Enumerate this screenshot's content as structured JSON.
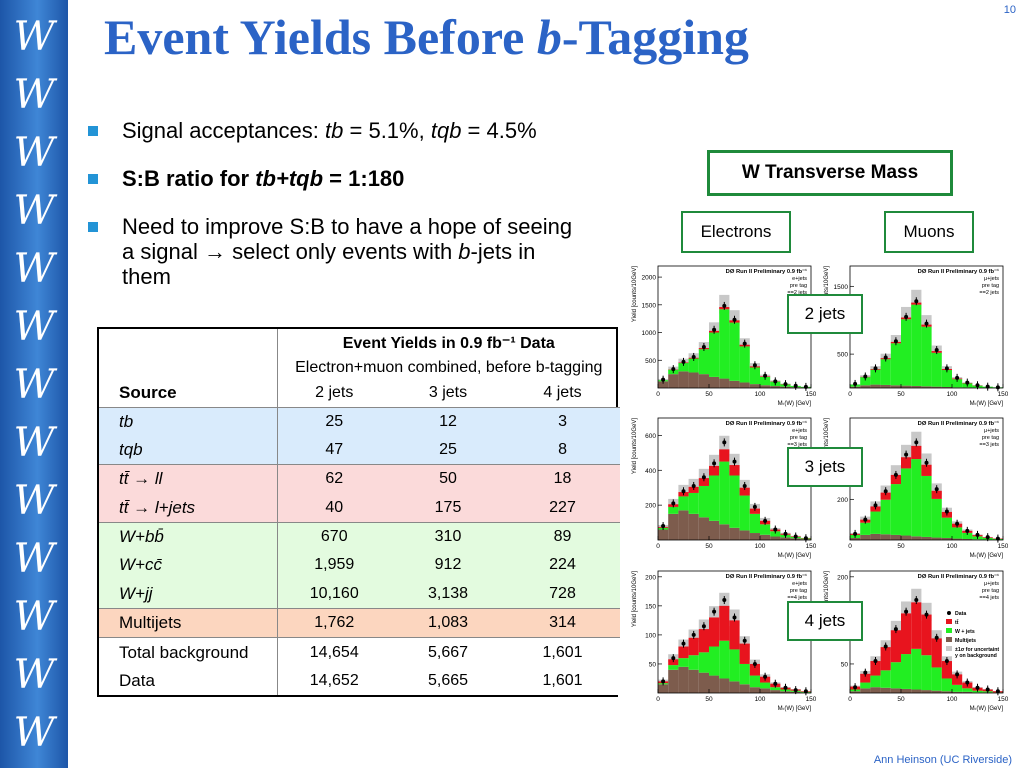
{
  "slide": {
    "page_number": "10",
    "title_main": "Event Yields Before ",
    "title_italic": "b",
    "title_tail": "-Tagging",
    "footer": "Ann Heinson   (UC Riverside)"
  },
  "sidebar": {
    "glyph": "W",
    "count": 13
  },
  "bullets": {
    "b1_prefix": "Signal acceptances: ",
    "b1_tb": "tb",
    "b1_tb_val": " = 5.1%, ",
    "b1_tqb": "tqb",
    "b1_tqb_val": " = 4.5%",
    "b2_prefix": "S:B ratio for ",
    "b2_italic": "tb+tqb",
    "b2_suffix": " = 1:180",
    "b3_line1": "Need to improve S:B to have a hope of seeing a signal ",
    "b3_arrow": "→",
    "b3_line2": " select only events with ",
    "b3_italic": "b",
    "b3_tail": "-jets in them"
  },
  "table": {
    "title": "Event Yields in 0.9 fb⁻¹ Data",
    "subtitle": "Electron+muon combined, before b-tagging",
    "source_header": "Source",
    "columns": [
      "2 jets",
      "3 jets",
      "4 jets"
    ],
    "rows": [
      {
        "source": "tb",
        "values": [
          "25",
          "12",
          "3"
        ]
      },
      {
        "source": "tqb",
        "values": [
          "47",
          "25",
          "8"
        ]
      },
      {
        "source": "tt̄ → ll",
        "values": [
          "62",
          "50",
          "18"
        ]
      },
      {
        "source": "tt̄ → l+jets",
        "values": [
          "40",
          "175",
          "227"
        ]
      },
      {
        "source": "W+bb̄",
        "values": [
          "670",
          "310",
          "89"
        ]
      },
      {
        "source": "W+cc̄",
        "values": [
          "1,959",
          "912",
          "224"
        ]
      },
      {
        "source": "W+jj",
        "values": [
          "10,160",
          "3,138",
          "728"
        ]
      },
      {
        "source": "Multijets",
        "values": [
          "1,762",
          "1,083",
          "314"
        ]
      },
      {
        "source": "Total background",
        "values": [
          "14,654",
          "5,667",
          "1,601"
        ]
      },
      {
        "source": "Data",
        "values": [
          "14,652",
          "5,665",
          "1,601"
        ]
      }
    ]
  },
  "labels": {
    "wtm": "W Transverse Mass",
    "electrons": "Electrons",
    "muons": "Muons",
    "jets2": "2 jets",
    "jets3": "3 jets",
    "jets4": "4 jets"
  },
  "plot_text": {
    "header": "DØ Run II Preliminary 0.9 fb⁻¹",
    "ylabel": "Yield [counts/10GeV]",
    "xlabel": "Mₜ(W) [GeV]",
    "e_chan": "e+jets",
    "mu_chan": "μ+jets",
    "pretag": "pre tag",
    "eq2": "==2 jets",
    "eq3": "==3 jets",
    "eq4": "==4 jets",
    "legend_data": "Data",
    "legend_tt": "tt̄",
    "legend_wjets": "W + jets",
    "legend_multijets": "Multijets",
    "legend_unc": "±1σ for uncertainty on background",
    "x_ticks": [
      "0",
      "50",
      "100",
      "150"
    ]
  },
  "chart_data": [
    {
      "type": "bar",
      "channel": "e+jets",
      "jets": "==2 jets",
      "xlabel": "Mₜ(W) [GeV]",
      "ylabel": "Yield [counts/10GeV]",
      "xlim": [
        0,
        150
      ],
      "ylim": [
        0,
        2200
      ],
      "y_ticks": [
        "500",
        "1000",
        "1500",
        "2000"
      ],
      "categories": [
        "5",
        "15",
        "25",
        "35",
        "45",
        "55",
        "65",
        "75",
        "85",
        "95",
        "105",
        "115",
        "125",
        "135",
        "145"
      ],
      "series": [
        {
          "name": "Multijets",
          "values": [
            120,
            250,
            300,
            280,
            250,
            200,
            170,
            130,
            100,
            70,
            50,
            35,
            25,
            15,
            10
          ]
        },
        {
          "name": "W + jets",
          "values": [
            20,
            80,
            150,
            250,
            450,
            800,
            1250,
            1050,
            650,
            300,
            150,
            80,
            40,
            20,
            10
          ]
        },
        {
          "name": "tt̄",
          "values": [
            0,
            5,
            10,
            15,
            20,
            30,
            40,
            40,
            30,
            20,
            10,
            5,
            5,
            0,
            0
          ]
        },
        {
          "name": "Data",
          "values": [
            150,
            340,
            470,
            560,
            740,
            1050,
            1480,
            1230,
            800,
            410,
            220,
            120,
            70,
            40,
            20
          ]
        }
      ]
    },
    {
      "type": "bar",
      "channel": "μ+jets",
      "jets": "==2 jets",
      "xlabel": "Mₜ(W) [GeV]",
      "ylabel": "Yield [counts/10GeV]",
      "xlim": [
        0,
        150
      ],
      "ylim": [
        0,
        1800
      ],
      "y_ticks": [
        "500",
        "1000",
        "1500"
      ],
      "categories": [
        "5",
        "15",
        "25",
        "35",
        "45",
        "55",
        "65",
        "75",
        "85",
        "95",
        "105",
        "115",
        "125",
        "135",
        "145"
      ],
      "series": [
        {
          "name": "Multijets",
          "values": [
            20,
            40,
            50,
            45,
            40,
            35,
            30,
            25,
            20,
            15,
            10,
            8,
            5,
            4,
            2
          ]
        },
        {
          "name": "W + jets",
          "values": [
            30,
            120,
            220,
            380,
            620,
            980,
            1200,
            880,
            500,
            250,
            120,
            60,
            30,
            15,
            8
          ]
        },
        {
          "name": "tt̄",
          "values": [
            0,
            5,
            10,
            15,
            20,
            25,
            30,
            30,
            25,
            15,
            10,
            5,
            3,
            0,
            0
          ]
        },
        {
          "name": "Data",
          "values": [
            60,
            170,
            290,
            450,
            690,
            1050,
            1280,
            950,
            560,
            290,
            150,
            80,
            40,
            20,
            10
          ]
        }
      ]
    },
    {
      "type": "bar",
      "channel": "e+jets",
      "jets": "==3 jets",
      "xlabel": "Mₜ(W) [GeV]",
      "ylabel": "Yield [counts/10GeV]",
      "xlim": [
        0,
        150
      ],
      "ylim": [
        0,
        700
      ],
      "y_ticks": [
        "200",
        "400",
        "600"
      ],
      "categories": [
        "5",
        "15",
        "25",
        "35",
        "45",
        "55",
        "65",
        "75",
        "85",
        "95",
        "105",
        "115",
        "125",
        "135",
        "145"
      ],
      "series": [
        {
          "name": "Multijets",
          "values": [
            60,
            150,
            170,
            150,
            130,
            110,
            90,
            70,
            55,
            40,
            30,
            20,
            15,
            10,
            5
          ]
        },
        {
          "name": "W + jets",
          "values": [
            10,
            40,
            80,
            120,
            180,
            260,
            360,
            300,
            200,
            110,
            60,
            30,
            15,
            8,
            4
          ]
        },
        {
          "name": "tt̄",
          "values": [
            5,
            15,
            25,
            35,
            45,
            55,
            70,
            60,
            45,
            30,
            20,
            10,
            6,
            3,
            2
          ]
        },
        {
          "name": "Data",
          "values": [
            80,
            210,
            280,
            310,
            360,
            440,
            560,
            450,
            310,
            190,
            110,
            60,
            35,
            20,
            10
          ]
        }
      ]
    },
    {
      "type": "bar",
      "channel": "μ+jets",
      "jets": "==3 jets",
      "xlabel": "Mₜ(W) [GeV]",
      "ylabel": "Yield [counts/10GeV]",
      "xlim": [
        0,
        150
      ],
      "ylim": [
        0,
        600
      ],
      "y_ticks": [
        "200",
        "400"
      ],
      "categories": [
        "5",
        "15",
        "25",
        "35",
        "45",
        "55",
        "65",
        "75",
        "85",
        "95",
        "105",
        "115",
        "125",
        "135",
        "145"
      ],
      "series": [
        {
          "name": "Multijets",
          "values": [
            10,
            25,
            30,
            28,
            25,
            22,
            18,
            15,
            12,
            10,
            7,
            5,
            3,
            2,
            1
          ]
        },
        {
          "name": "W + jets",
          "values": [
            15,
            60,
            110,
            170,
            250,
            330,
            380,
            300,
            190,
            100,
            55,
            30,
            15,
            8,
            4
          ]
        },
        {
          "name": "tt̄",
          "values": [
            5,
            15,
            25,
            35,
            45,
            55,
            65,
            55,
            40,
            28,
            18,
            10,
            6,
            3,
            2
          ]
        },
        {
          "name": "Data",
          "values": [
            30,
            100,
            170,
            240,
            320,
            420,
            480,
            380,
            250,
            140,
            80,
            45,
            25,
            14,
            7
          ]
        }
      ]
    },
    {
      "type": "bar",
      "channel": "e+jets",
      "jets": "==4 jets",
      "xlabel": "Mₜ(W) [GeV]",
      "ylabel": "Yield [counts/10GeV]",
      "xlim": [
        0,
        150
      ],
      "ylim": [
        0,
        210
      ],
      "y_ticks": [
        "50",
        "100",
        "150",
        "200"
      ],
      "categories": [
        "5",
        "15",
        "25",
        "35",
        "45",
        "55",
        "65",
        "75",
        "85",
        "95",
        "105",
        "115",
        "125",
        "135",
        "145"
      ],
      "series": [
        {
          "name": "Multijets",
          "values": [
            15,
            40,
            45,
            40,
            35,
            30,
            25,
            20,
            15,
            10,
            8,
            5,
            3,
            2,
            1
          ]
        },
        {
          "name": "W + jets",
          "values": [
            2,
            8,
            15,
            25,
            35,
            50,
            65,
            55,
            35,
            20,
            10,
            5,
            3,
            2,
            1
          ]
        },
        {
          "name": "tt̄",
          "values": [
            3,
            10,
            20,
            30,
            40,
            50,
            60,
            50,
            35,
            20,
            10,
            6,
            3,
            2,
            1
          ]
        },
        {
          "name": "Data",
          "values": [
            20,
            60,
            85,
            100,
            115,
            140,
            160,
            130,
            90,
            50,
            28,
            16,
            9,
            5,
            3
          ]
        }
      ]
    },
    {
      "type": "bar",
      "channel": "μ+jets",
      "jets": "==4 jets",
      "xlabel": "Mₜ(W) [GeV]",
      "ylabel": "Yield [counts/10GeV]",
      "xlim": [
        0,
        150
      ],
      "ylim": [
        0,
        210
      ],
      "y_ticks": [
        "50",
        "100",
        "150",
        "200"
      ],
      "categories": [
        "5",
        "15",
        "25",
        "35",
        "45",
        "55",
        "65",
        "75",
        "85",
        "95",
        "105",
        "115",
        "125",
        "135",
        "145"
      ],
      "series": [
        {
          "name": "Multijets",
          "values": [
            3,
            8,
            10,
            9,
            8,
            7,
            6,
            5,
            4,
            3,
            2,
            2,
            1,
            1,
            0
          ]
        },
        {
          "name": "W + jets",
          "values": [
            3,
            10,
            20,
            30,
            45,
            60,
            70,
            60,
            40,
            22,
            12,
            6,
            3,
            2,
            1
          ]
        },
        {
          "name": "tt̄",
          "values": [
            5,
            15,
            25,
            40,
            55,
            70,
            80,
            70,
            50,
            30,
            18,
            10,
            5,
            3,
            2
          ]
        },
        {
          "name": "Data",
          "values": [
            10,
            35,
            55,
            80,
            110,
            140,
            160,
            135,
            95,
            55,
            32,
            18,
            9,
            6,
            3
          ]
        }
      ]
    }
  ],
  "colors": {
    "sidebar": "#2a6dc0",
    "title": "#2b63c6",
    "bullet": "#2394d6",
    "label_border": "#1f8a3b",
    "wjets": "#22ee22",
    "tt": "#e8141e",
    "multijets": "#7d5c4d",
    "uncertainty": "#c8c8c8",
    "row_blue": "#d9ebfc",
    "row_pink": "#fbdada",
    "row_green": "#e3fbdf",
    "row_orange": "#fcd6bf"
  }
}
